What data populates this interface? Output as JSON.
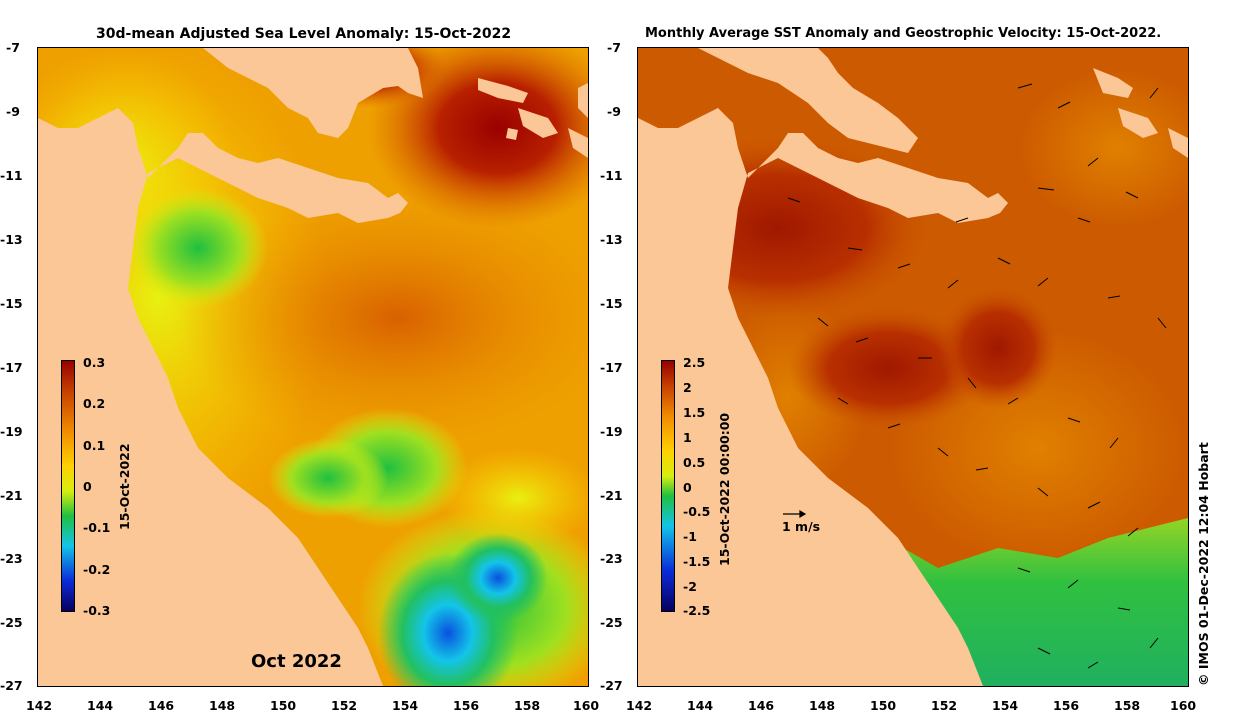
{
  "left_panel": {
    "title": "30d-mean Adjusted Sea Level Anomaly: 15-Oct-2022",
    "month_label": "Oct 2022",
    "colorbar": {
      "date_label": "15-Oct-2022",
      "ticks": [
        "0.3",
        "0.2",
        "0.1",
        "0",
        "-0.1",
        "-0.2",
        "-0.3"
      ]
    }
  },
  "right_panel": {
    "title": "Monthly Average SST Anomaly  and Geostrophic Velocity: 15-Oct-2022.",
    "scale_arrow_label": "1 m/s",
    "colorbar": {
      "date_label": "15-Oct-2022 00:00:00",
      "ticks": [
        "2.5",
        "2",
        "1.5",
        "1",
        "0.5",
        "0",
        "-0.5",
        "-1",
        "-1.5",
        "-2",
        "-2.5"
      ]
    }
  },
  "axes": {
    "x_ticks": [
      "142",
      "144",
      "146",
      "148",
      "150",
      "152",
      "154",
      "156",
      "158",
      "160"
    ],
    "y_ticks": [
      "-7",
      "-9",
      "-11",
      "-13",
      "-15",
      "-17",
      "-19",
      "-21",
      "-23",
      "-25",
      "-27"
    ]
  },
  "credit": "© IMOS 01-Dec-2022 12:04 Hobart",
  "colors": {
    "land": "#fbc797",
    "colormap": [
      "#08005e",
      "#0a2bd8",
      "#13c4e8",
      "#20c040",
      "#d8ee10",
      "#ffd000",
      "#f08b00",
      "#c64000",
      "#960000"
    ]
  }
}
